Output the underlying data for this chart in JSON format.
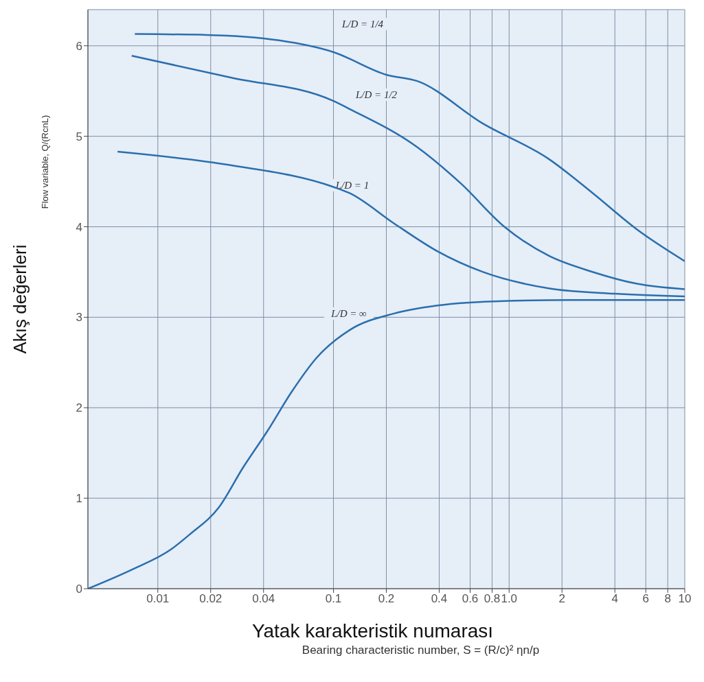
{
  "chart_data": {
    "type": "line",
    "xlabel": "Yatak karakteristik numarası",
    "ylabel": "Akış değerleri",
    "annotations": [
      "Flow variable, Q/(RcnL)",
      "Bearing characteristic number, S = (R/c)² ηn/p",
      "L/D = 1/4",
      "L/D = 1/2",
      "L/D = 1",
      "L/D = ∞"
    ],
    "log": "x",
    "xlim": [
      0.004,
      10
    ],
    "ylim": [
      0,
      6.4
    ],
    "xticks": [
      0.01,
      0.02,
      0.04,
      0.1,
      0.2,
      0.4,
      0.6,
      0.8,
      {
        "value": 1,
        "label": "1.0"
      },
      2,
      4,
      6,
      8,
      10
    ],
    "yticks": [
      0,
      1,
      2,
      3,
      4,
      5,
      6
    ],
    "grid": true,
    "legend": false,
    "marker": "none",
    "line_style": "solid",
    "series": [
      {
        "color": "#2a6fad",
        "x": [
          0.0074,
          0.019,
          0.049,
          0.1,
          0.2,
          0.3,
          0.71,
          1.68,
          3.0,
          5.35,
          10
        ],
        "values": [
          6.13,
          6.12,
          6.06,
          5.93,
          5.68,
          5.61,
          5.14,
          4.75,
          4.37,
          3.97,
          3.62
        ]
      },
      {
        "color": "#2a6fad",
        "x": [
          0.0071,
          0.026,
          0.1,
          0.124,
          0.3,
          0.53,
          0.94,
          1.68,
          3.0,
          5.35,
          10
        ],
        "values": [
          5.89,
          5.65,
          5.39,
          5.3,
          4.88,
          4.48,
          4.0,
          3.68,
          3.5,
          3.37,
          3.31
        ]
      },
      {
        "color": "#2a6fad",
        "x": [
          0.0059,
          0.026,
          0.1,
          0.124,
          0.22,
          0.39,
          0.71,
          1.68,
          4.0,
          10
        ],
        "values": [
          4.83,
          4.68,
          4.44,
          4.37,
          4.04,
          3.73,
          3.5,
          3.32,
          3.26,
          3.23
        ]
      },
      {
        "color": "#2a6fad",
        "x": [
          0.004,
          0.0071,
          0.0118,
          0.0152,
          0.0223,
          0.0306,
          0.042,
          0.058,
          0.08,
          0.124,
          0.22,
          0.39,
          0.94,
          2.24,
          10
        ],
        "values": [
          0,
          0.21,
          0.43,
          0.6,
          0.9,
          1.34,
          1.74,
          2.18,
          2.55,
          2.86,
          3.04,
          3.13,
          3.18,
          3.19,
          3.19
        ]
      }
    ]
  }
}
